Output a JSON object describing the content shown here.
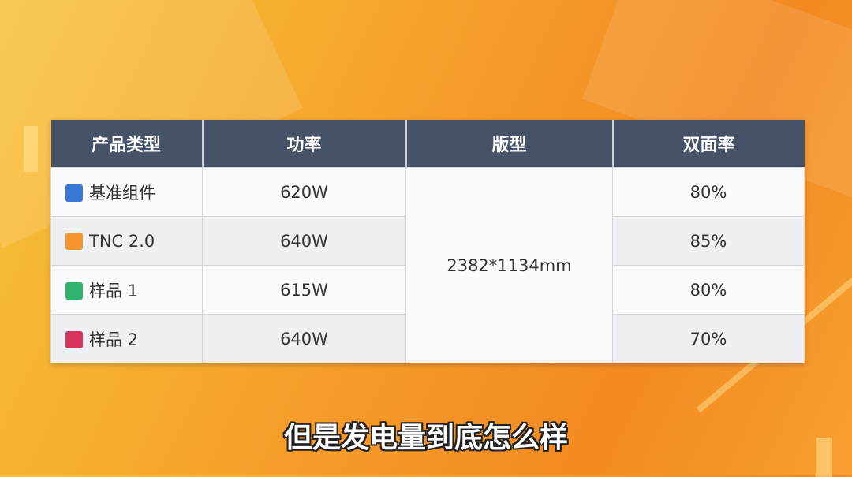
{
  "table": {
    "headers": [
      "产品类型",
      "功率",
      "版型",
      "双面率"
    ],
    "merged_size": "2382*1134mm",
    "rows": [
      {
        "name": "基准组件",
        "color": "#3a78d8",
        "power": "620W",
        "bifaciality": "80%"
      },
      {
        "name": "TNC 2.0",
        "color": "#f7962e",
        "power": "640W",
        "bifaciality": "85%"
      },
      {
        "name": "样品 1",
        "color": "#2fb36d",
        "power": "615W",
        "bifaciality": "80%"
      },
      {
        "name": "样品 2",
        "color": "#d6345c",
        "power": "640W",
        "bifaciality": "70%"
      }
    ]
  },
  "subtitle": "但是发电量到底怎么样"
}
